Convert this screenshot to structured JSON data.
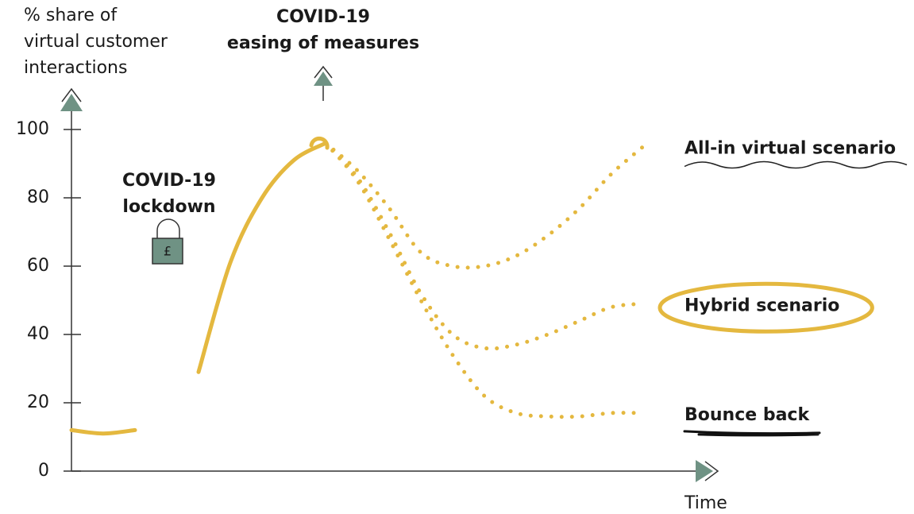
{
  "chart_data": {
    "type": "line",
    "ylabel": [
      "% share of",
      "virtual customer",
      "interactions"
    ],
    "xlabel": "Time",
    "categories": [
      null,
      null,
      null,
      null,
      null,
      null,
      null,
      null,
      null,
      null,
      null,
      null,
      null,
      null,
      null,
      null,
      null,
      null,
      null
    ],
    "ylim": [
      0,
      100
    ],
    "yticks": [
      0,
      20,
      40,
      60,
      80,
      100
    ],
    "grid": false,
    "series": [
      {
        "color": "#e4b83f",
        "style": "solid",
        "values": [
          12,
          11,
          12,
          null,
          29,
          61,
          80,
          91,
          96,
          null,
          null,
          null,
          null,
          null,
          null,
          null,
          null,
          null,
          null
        ]
      },
      {
        "name": "All-in virtual scenario",
        "color": "#e4b83f",
        "style": "dotted",
        "values": [
          null,
          null,
          null,
          null,
          null,
          null,
          null,
          null,
          96,
          88,
          77,
          64,
          60,
          60,
          63,
          69,
          77,
          87,
          95
        ]
      },
      {
        "name": "Hybrid scenario",
        "color": "#e4b83f",
        "style": "dotted",
        "values": [
          null,
          null,
          null,
          null,
          null,
          null,
          null,
          null,
          96,
          86,
          70,
          52,
          40,
          36,
          37,
          40,
          44,
          48,
          49
        ]
      },
      {
        "name": "Bounce back",
        "color": "#e4b83f",
        "style": "dotted",
        "values": [
          null,
          null,
          null,
          null,
          null,
          null,
          null,
          null,
          96,
          85,
          68,
          50,
          34,
          22,
          17,
          16,
          16,
          17,
          17
        ]
      }
    ],
    "annotations": [
      {
        "text": [
          "COVID-19",
          "lockdown"
        ],
        "icon": "lock"
      },
      {
        "text": [
          "COVID-19",
          "easing of measures"
        ],
        "icon": "arrow"
      }
    ]
  }
}
